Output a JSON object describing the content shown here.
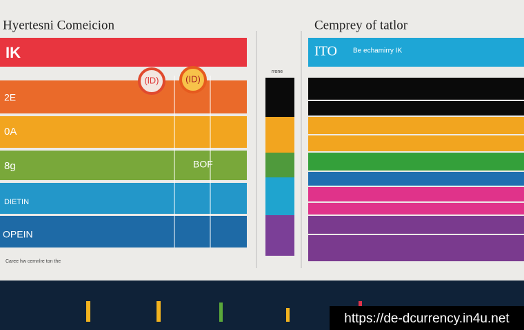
{
  "left_panel": {
    "title": "Hyertesni Comeicion",
    "header": "IK",
    "rows": [
      "2E",
      "0A",
      "8g",
      "DIETIN",
      "OPEIN"
    ],
    "badges": [
      {
        "label": "(lD)"
      },
      {
        "label": "(ID)"
      }
    ],
    "side_label": "BOF",
    "footnote": "Caree hw cemnlre ton the"
  },
  "right_panel": {
    "title": "Cemprey of tatlor",
    "header": "ITO",
    "header_note": "Be echamirry IK"
  },
  "middle_label": "rrone",
  "watermark": "https://de-dcurrency.in4u.net"
}
